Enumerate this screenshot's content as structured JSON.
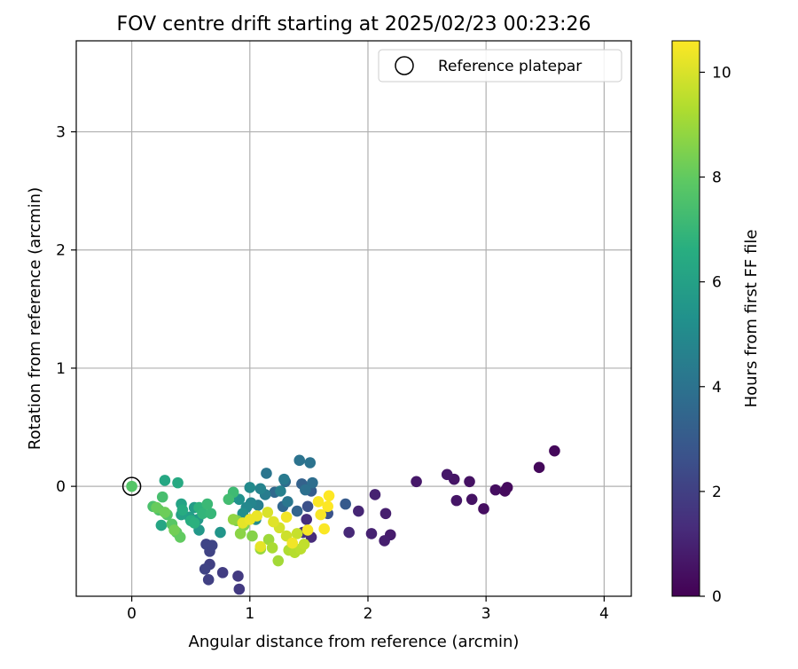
{
  "chart_data": {
    "type": "scatter",
    "title": "FOV centre drift starting at 2025/02/23 00:23:26",
    "xlabel": "Angular distance from reference (arcmin)",
    "ylabel": "Rotation from reference (arcmin)",
    "xlim": [
      -0.47,
      4.23
    ],
    "ylim": [
      -0.93,
      3.77
    ],
    "xticks": [
      0,
      1,
      2,
      3,
      4
    ],
    "yticks": [
      0,
      1,
      2,
      3
    ],
    "grid": true,
    "legend": {
      "position": "top-right",
      "entries": [
        "Reference platepar"
      ]
    },
    "reference_point": {
      "x": 0,
      "y": 0
    },
    "colorbar": {
      "label": "Hours from first FF file",
      "range": [
        0,
        10.6
      ],
      "ticks": [
        0,
        2,
        4,
        6,
        8,
        10
      ],
      "colormap": "viridis"
    },
    "points": [
      {
        "x": 3.58,
        "y": 0.3,
        "h": 0.2
      },
      {
        "x": 3.45,
        "y": 0.16,
        "h": 0.2
      },
      {
        "x": 3.18,
        "y": -0.01,
        "h": 0.3
      },
      {
        "x": 3.16,
        "y": -0.04,
        "h": 0.3
      },
      {
        "x": 3.08,
        "y": -0.03,
        "h": 0.4
      },
      {
        "x": 2.98,
        "y": -0.19,
        "h": 0.4
      },
      {
        "x": 2.88,
        "y": -0.11,
        "h": 0.5
      },
      {
        "x": 2.86,
        "y": 0.04,
        "h": 0.5
      },
      {
        "x": 2.75,
        "y": -0.12,
        "h": 0.6
      },
      {
        "x": 2.73,
        "y": 0.06,
        "h": 0.6
      },
      {
        "x": 2.67,
        "y": 0.1,
        "h": 0.7
      },
      {
        "x": 2.41,
        "y": 0.04,
        "h": 0.7
      },
      {
        "x": 2.19,
        "y": -0.41,
        "h": 0.8
      },
      {
        "x": 2.15,
        "y": -0.23,
        "h": 0.9
      },
      {
        "x": 2.14,
        "y": -0.46,
        "h": 0.9
      },
      {
        "x": 2.06,
        "y": -0.07,
        "h": 1.0
      },
      {
        "x": 2.03,
        "y": -0.4,
        "h": 1.0
      },
      {
        "x": 1.92,
        "y": -0.21,
        "h": 1.1
      },
      {
        "x": 1.84,
        "y": -0.39,
        "h": 1.2
      },
      {
        "x": 1.52,
        "y": -0.43,
        "h": 1.3
      },
      {
        "x": 1.48,
        "y": -0.28,
        "h": 1.4
      },
      {
        "x": 1.45,
        "y": -0.39,
        "h": 1.5
      },
      {
        "x": 0.91,
        "y": -0.87,
        "h": 1.8
      },
      {
        "x": 0.9,
        "y": -0.76,
        "h": 1.8
      },
      {
        "x": 0.77,
        "y": -0.73,
        "h": 1.9
      },
      {
        "x": 0.65,
        "y": -0.79,
        "h": 2.0
      },
      {
        "x": 0.66,
        "y": -0.66,
        "h": 2.0
      },
      {
        "x": 0.62,
        "y": -0.7,
        "h": 2.1
      },
      {
        "x": 0.66,
        "y": -0.55,
        "h": 2.1
      },
      {
        "x": 0.63,
        "y": -0.49,
        "h": 2.2
      },
      {
        "x": 0.68,
        "y": -0.5,
        "h": 2.2
      },
      {
        "x": 1.49,
        "y": -0.17,
        "h": 2.6
      },
      {
        "x": 1.66,
        "y": -0.23,
        "h": 2.7
      },
      {
        "x": 1.81,
        "y": -0.15,
        "h": 3.0
      },
      {
        "x": 1.52,
        "y": -0.04,
        "h": 3.1
      },
      {
        "x": 1.44,
        "y": 0.02,
        "h": 3.3
      },
      {
        "x": 1.4,
        "y": -0.21,
        "h": 3.4
      },
      {
        "x": 1.28,
        "y": -0.17,
        "h": 3.5
      },
      {
        "x": 1.21,
        "y": -0.05,
        "h": 3.6
      },
      {
        "x": 1.3,
        "y": 0.04,
        "h": 3.7
      },
      {
        "x": 1.53,
        "y": 0.03,
        "h": 3.8
      },
      {
        "x": 1.47,
        "y": -0.03,
        "h": 3.9
      },
      {
        "x": 1.42,
        "y": 0.22,
        "h": 4.0
      },
      {
        "x": 1.51,
        "y": 0.2,
        "h": 4.0
      },
      {
        "x": 1.14,
        "y": 0.11,
        "h": 4.1
      },
      {
        "x": 1.32,
        "y": -0.13,
        "h": 4.2
      },
      {
        "x": 1.29,
        "y": 0.06,
        "h": 4.3
      },
      {
        "x": 1.13,
        "y": -0.07,
        "h": 4.4
      },
      {
        "x": 1.07,
        "y": -0.16,
        "h": 4.5
      },
      {
        "x": 1.26,
        "y": -0.04,
        "h": 4.6
      },
      {
        "x": 1.09,
        "y": -0.02,
        "h": 4.7
      },
      {
        "x": 1.01,
        "y": -0.14,
        "h": 4.8
      },
      {
        "x": 0.97,
        "y": -0.18,
        "h": 4.9
      },
      {
        "x": 1.0,
        "y": -0.01,
        "h": 5.0
      },
      {
        "x": 1.05,
        "y": -0.28,
        "h": 5.1
      },
      {
        "x": 0.94,
        "y": -0.23,
        "h": 5.2
      },
      {
        "x": 0.91,
        "y": -0.11,
        "h": 5.3
      },
      {
        "x": 0.85,
        "y": -0.09,
        "h": 5.4
      },
      {
        "x": 0.75,
        "y": -0.39,
        "h": 5.5
      },
      {
        "x": 0.57,
        "y": -0.37,
        "h": 5.6
      },
      {
        "x": 0.56,
        "y": -0.28,
        "h": 5.7
      },
      {
        "x": 0.53,
        "y": -0.18,
        "h": 5.8
      },
      {
        "x": 0.49,
        "y": -0.26,
        "h": 5.9
      },
      {
        "x": 0.42,
        "y": -0.24,
        "h": 6.0
      },
      {
        "x": 0.42,
        "y": -0.15,
        "h": 6.1
      },
      {
        "x": 0.25,
        "y": -0.33,
        "h": 6.2
      },
      {
        "x": 0.28,
        "y": 0.05,
        "h": 6.3
      },
      {
        "x": 0.39,
        "y": 0.03,
        "h": 6.4
      },
      {
        "x": 0.43,
        "y": -0.2,
        "h": 6.5
      },
      {
        "x": 0.5,
        "y": -0.29,
        "h": 6.6
      },
      {
        "x": 0.53,
        "y": -0.31,
        "h": 6.7
      },
      {
        "x": 0.57,
        "y": -0.18,
        "h": 6.8
      },
      {
        "x": 0.6,
        "y": -0.23,
        "h": 6.9
      },
      {
        "x": 0.67,
        "y": -0.23,
        "h": 7.0
      },
      {
        "x": 0.64,
        "y": -0.15,
        "h": 7.1
      },
      {
        "x": 0.86,
        "y": -0.05,
        "h": 7.2
      },
      {
        "x": 0.82,
        "y": -0.11,
        "h": 7.3
      },
      {
        "x": 0.26,
        "y": -0.09,
        "h": 7.4
      },
      {
        "x": 0.18,
        "y": -0.17,
        "h": 7.5
      },
      {
        "x": 0.23,
        "y": -0.2,
        "h": 7.6
      },
      {
        "x": 0.3,
        "y": -0.24,
        "h": 7.7
      },
      {
        "x": 0.34,
        "y": -0.32,
        "h": 7.8
      },
      {
        "x": 0.38,
        "y": -0.39,
        "h": 7.9
      },
      {
        "x": 0.41,
        "y": -0.43,
        "h": 8.0
      },
      {
        "x": 0.21,
        "y": -0.18,
        "h": 8.1
      },
      {
        "x": 0.28,
        "y": -0.22,
        "h": 8.2
      },
      {
        "x": 0.36,
        "y": -0.37,
        "h": 8.3
      },
      {
        "x": 0.89,
        "y": -0.29,
        "h": 8.4
      },
      {
        "x": 0.95,
        "y": -0.33,
        "h": 8.5
      },
      {
        "x": 1.02,
        "y": -0.42,
        "h": 8.6
      },
      {
        "x": 0.92,
        "y": -0.4,
        "h": 8.7
      },
      {
        "x": 0.86,
        "y": -0.28,
        "h": 8.8
      },
      {
        "x": 1.09,
        "y": -0.53,
        "h": 8.9
      },
      {
        "x": 1.16,
        "y": -0.45,
        "h": 9.0
      },
      {
        "x": 1.24,
        "y": -0.63,
        "h": 9.1
      },
      {
        "x": 1.19,
        "y": -0.52,
        "h": 9.2
      },
      {
        "x": 1.33,
        "y": -0.54,
        "h": 9.3
      },
      {
        "x": 1.38,
        "y": -0.56,
        "h": 9.4
      },
      {
        "x": 1.43,
        "y": -0.53,
        "h": 9.5
      },
      {
        "x": 1.46,
        "y": -0.49,
        "h": 9.6
      },
      {
        "x": 1.4,
        "y": -0.4,
        "h": 9.7
      },
      {
        "x": 1.31,
        "y": -0.42,
        "h": 9.8
      },
      {
        "x": 1.25,
        "y": -0.35,
        "h": 9.9
      },
      {
        "x": 1.15,
        "y": -0.22,
        "h": 10.0
      },
      {
        "x": 1.2,
        "y": -0.3,
        "h": 10.1
      },
      {
        "x": 1.09,
        "y": -0.51,
        "h": 10.2
      },
      {
        "x": 0.94,
        "y": -0.31,
        "h": 10.2
      },
      {
        "x": 1.0,
        "y": -0.28,
        "h": 10.3
      },
      {
        "x": 1.06,
        "y": -0.25,
        "h": 10.3
      },
      {
        "x": 1.31,
        "y": -0.26,
        "h": 10.4
      },
      {
        "x": 1.36,
        "y": -0.48,
        "h": 10.4
      },
      {
        "x": 1.49,
        "y": -0.37,
        "h": 10.5
      },
      {
        "x": 1.6,
        "y": -0.24,
        "h": 10.5
      },
      {
        "x": 1.63,
        "y": -0.36,
        "h": 10.55
      },
      {
        "x": 1.58,
        "y": -0.13,
        "h": 10.55
      },
      {
        "x": 1.66,
        "y": -0.17,
        "h": 10.6
      },
      {
        "x": 1.67,
        "y": -0.08,
        "h": 10.6
      }
    ]
  }
}
